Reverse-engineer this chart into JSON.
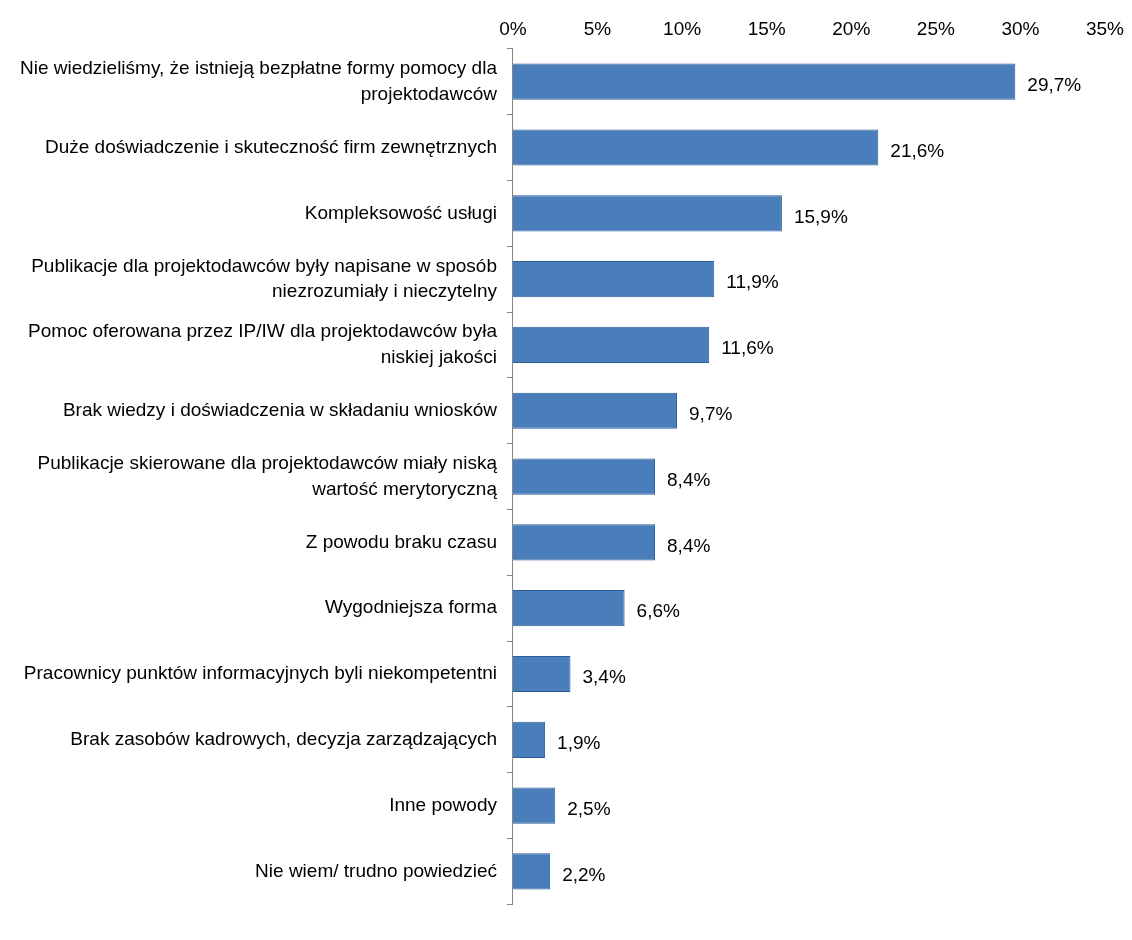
{
  "chart_data": {
    "type": "bar",
    "orientation": "horizontal",
    "categories": [
      "Nie wiedzieliśmy, że istnieją bezpłatne formy pomocy dla projektodawców",
      "Duże doświadczenie i skuteczność firm zewnętrznych",
      "Kompleksowość usługi",
      "Publikacje dla projektodawców były napisane w sposób niezrozumiały i nieczytelny",
      "Pomoc oferowana przez IP/IW dla projektodawców była niskiej jakości",
      "Brak wiedzy i doświadczenia w składaniu wniosków",
      "Publikacje skierowane dla projektodawców miały niską wartość merytoryczną",
      "Z powodu braku czasu",
      "Wygodniejsza forma",
      "Pracownicy punktów informacyjnych byli niekompetentni",
      "Brak zasobów kadrowych, decyzja zarządzających",
      "Inne powody",
      "Nie wiem/ trudno powiedzieć"
    ],
    "values": [
      29.7,
      21.6,
      15.9,
      11.9,
      11.6,
      9.7,
      8.4,
      8.4,
      6.6,
      3.4,
      1.9,
      2.5,
      2.2
    ],
    "value_labels": [
      "29,7%",
      "21,6%",
      "15,9%",
      "11,9%",
      "11,6%",
      "9,7%",
      "8,4%",
      "8,4%",
      "6,6%",
      "3,4%",
      "1,9%",
      "2,5%",
      "2,2%"
    ],
    "color": "#4a7ebb",
    "xlim": [
      0,
      35
    ],
    "xticks": [
      {
        "value": 0,
        "label": "0%"
      },
      {
        "value": 5,
        "label": "5%"
      },
      {
        "value": 10,
        "label": "10%"
      },
      {
        "value": 15,
        "label": "15%"
      },
      {
        "value": 20,
        "label": "20%"
      },
      {
        "value": 25,
        "label": "25%"
      },
      {
        "value": 30,
        "label": "30%"
      },
      {
        "value": 35,
        "label": "35%"
      }
    ],
    "grid": false,
    "legend": false
  }
}
